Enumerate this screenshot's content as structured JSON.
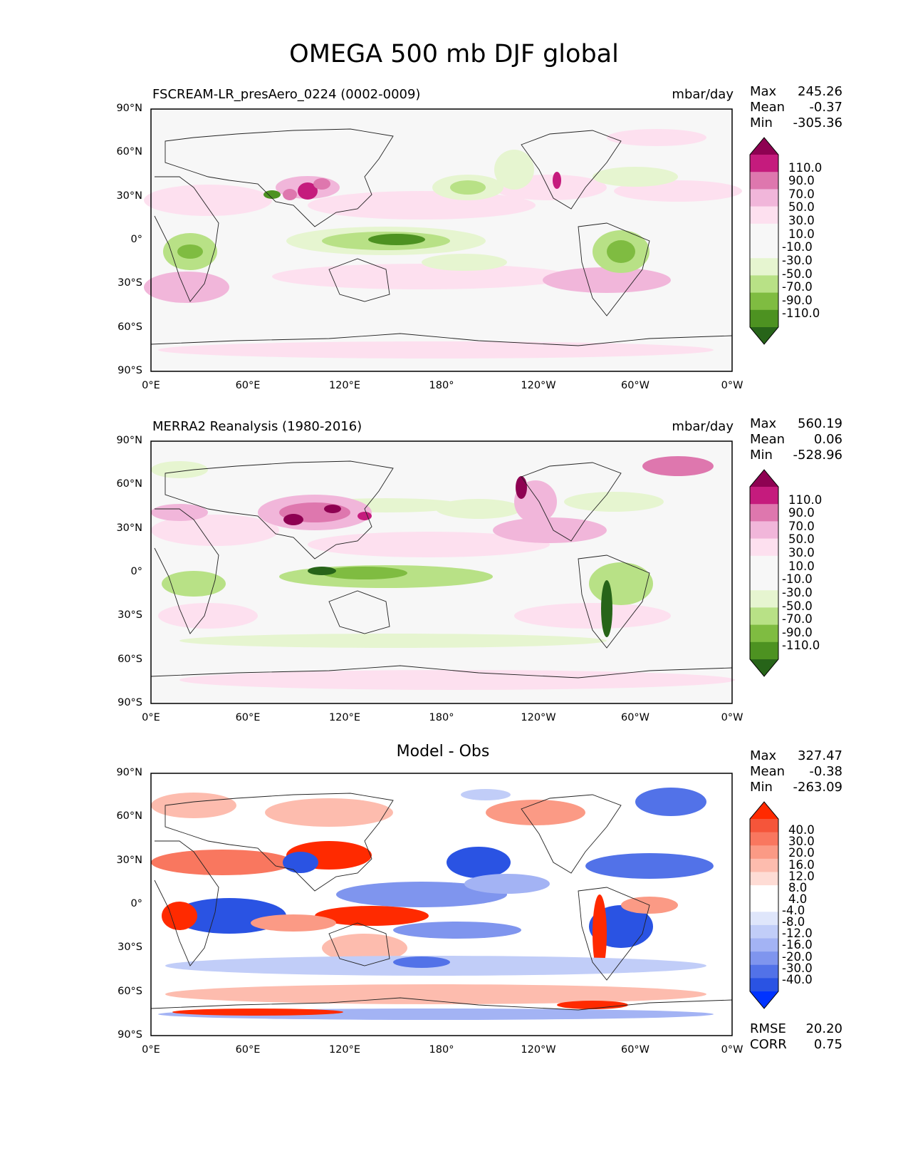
{
  "figure_title": "OMEGA 500 mb DJF global",
  "lat_labels": [
    "90°N",
    "60°N",
    "30°N",
    "0°",
    "30°S",
    "60°S",
    "90°S"
  ],
  "lon_labels": [
    "0°E",
    "60°E",
    "120°E",
    "180°",
    "120°W",
    "60°W",
    "0°W"
  ],
  "panels": [
    {
      "title_left": "FSCREAM-LR_presAero_0224 (0002-0009)",
      "title_right": "mbar/day",
      "title_center": "",
      "stats": {
        "max_label": "Max",
        "max": "245.26",
        "mean_label": "Mean",
        "mean": "-0.37",
        "min_label": "Min",
        "min": "-305.36"
      },
      "colorbar_levels": [
        "110.0",
        "90.0",
        "70.0",
        "50.0",
        "30.0",
        "10.0",
        "-10.0",
        "-30.0",
        "-50.0",
        "-70.0",
        "-90.0",
        "-110.0"
      ],
      "colorbar_colors": [
        "#8e0152",
        "#c51b7d",
        "#de77ae",
        "#f1b6da",
        "#fde0ef",
        "#f7f7f7",
        "#f7f7f7",
        "#e6f5d0",
        "#b8e186",
        "#7fbc41",
        "#4d9221",
        "#276419"
      ],
      "colormap": "PiYG"
    },
    {
      "title_left": "MERRA2 Reanalysis (1980-2016)",
      "title_right": "mbar/day",
      "title_center": "",
      "stats": {
        "max_label": "Max",
        "max": "560.19",
        "mean_label": "Mean",
        "mean": "0.06",
        "min_label": "Min",
        "min": "-528.96"
      },
      "colorbar_levels": [
        "110.0",
        "90.0",
        "70.0",
        "50.0",
        "30.0",
        "10.0",
        "-10.0",
        "-30.0",
        "-50.0",
        "-70.0",
        "-90.0",
        "-110.0"
      ],
      "colorbar_colors": [
        "#8e0152",
        "#c51b7d",
        "#de77ae",
        "#f1b6da",
        "#fde0ef",
        "#f7f7f7",
        "#f7f7f7",
        "#e6f5d0",
        "#b8e186",
        "#7fbc41",
        "#4d9221",
        "#276419"
      ],
      "colormap": "PiYG"
    },
    {
      "title_left": "",
      "title_right": "",
      "title_center": "Model - Obs",
      "stats": {
        "max_label": "Max",
        "max": "327.47",
        "mean_label": "Mean",
        "mean": "-0.38",
        "min_label": "Min",
        "min": "-263.09"
      },
      "colorbar_levels": [
        "40.0",
        "30.0",
        "20.0",
        "16.0",
        "12.0",
        "8.0",
        "4.0",
        "-4.0",
        "-8.0",
        "-12.0",
        "-16.0",
        "-20.0",
        "-30.0",
        "-40.0"
      ],
      "colorbar_colors": [
        "#ff2a00",
        "#f5553a",
        "#f9775f",
        "#fb9a85",
        "#fdbcae",
        "#fedcd5",
        "#ffffff",
        "#ffffff",
        "#dfe6fb",
        "#c1cdf8",
        "#a3b3f4",
        "#7f95ee",
        "#5272e8",
        "#2a53e3",
        "#0033ff"
      ],
      "colormap": "bwr",
      "bottom_stats": {
        "rmse_label": "RMSE",
        "rmse": "20.20",
        "corr_label": "CORR",
        "corr": "0.75"
      }
    }
  ]
}
